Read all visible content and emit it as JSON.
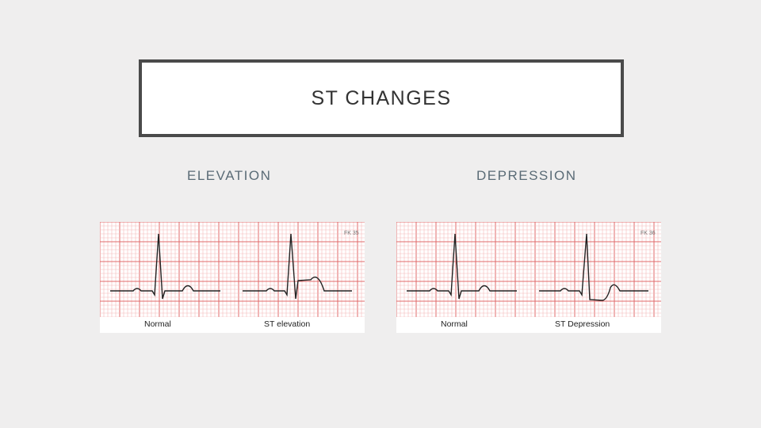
{
  "slide": {
    "title": "ST CHANGES"
  },
  "sections": {
    "elevation": {
      "heading": "ELEVATION",
      "captions": {
        "left": "Normal",
        "right": "ST elevation"
      },
      "figure_tag": "FK 35"
    },
    "depression": {
      "heading": "DEPRESSION",
      "captions": {
        "left": "Normal",
        "right": "ST Depression"
      },
      "figure_tag": "FK 36"
    }
  },
  "colors": {
    "background": "#efeeee",
    "grid_major": "#e06a6a",
    "grid_minor": "#f3b9b9",
    "trace": "#222222"
  }
}
